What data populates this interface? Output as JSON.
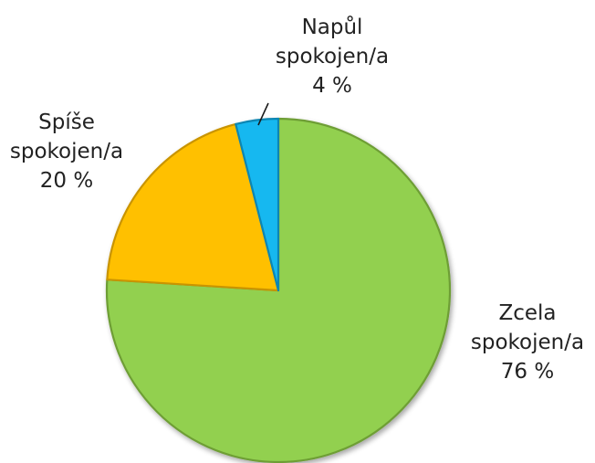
{
  "chart_data": {
    "type": "pie",
    "start": "12 o'clock",
    "direction": "clockwise",
    "slices": [
      {
        "label": "Zcela spokojen/a",
        "label_lines": [
          "Zcela",
          "spokojen/a",
          "76 %"
        ],
        "value": 76,
        "color": "#92d050",
        "edge_color": "#6e9e35"
      },
      {
        "label": "Spíše spokojen/a",
        "label_lines": [
          "Spíše",
          "spokojen/a",
          "20 %"
        ],
        "value": 20,
        "color": "#ffc000",
        "edge_color": "#c99400"
      },
      {
        "label": "Napůl spokojen/a",
        "label_lines": [
          "Napůl",
          "spokojen/a",
          "4 %"
        ],
        "value": 4,
        "color": "#17b8f0",
        "edge_color": "#0a86b3"
      }
    ]
  }
}
